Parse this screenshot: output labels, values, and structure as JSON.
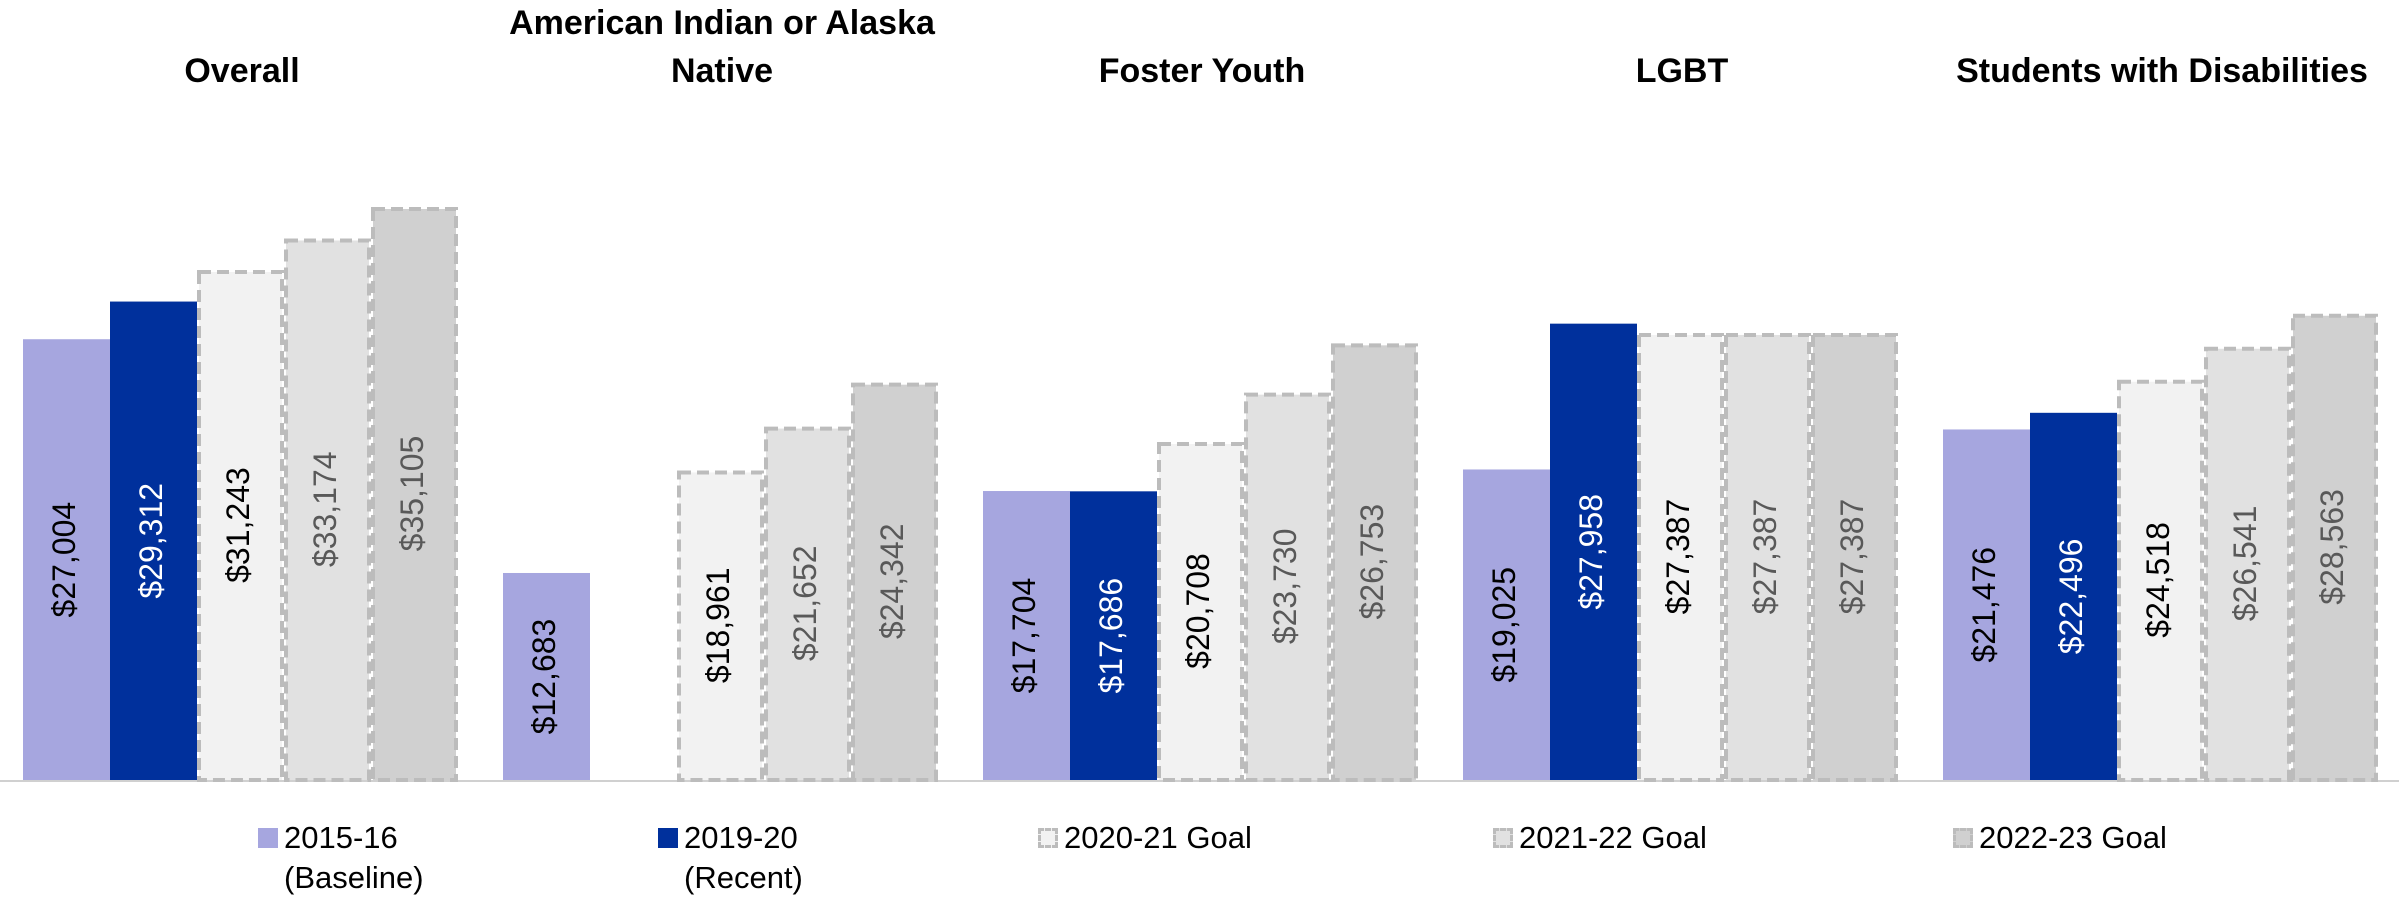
{
  "chart_data": {
    "type": "bar",
    "categories": [
      "Overall",
      "American Indian or Alaska Native",
      "Foster Youth",
      "LGBT",
      "Students with Disabilities"
    ],
    "series": [
      {
        "name": "2015-16 (Baseline)",
        "color": "#a6a6df",
        "label_color": "#000000",
        "values": [
          27004,
          12683,
          17704,
          19025,
          21476
        ],
        "value_labels": [
          "$27,004",
          "$12,683",
          "$17,704",
          "$19,025",
          "$21,476"
        ]
      },
      {
        "name": "2019-20 (Recent)",
        "color": "#00309c",
        "label_color": "#ffffff",
        "values": [
          29312,
          null,
          17686,
          27958,
          22496
        ],
        "value_labels": [
          "$29,312",
          null,
          "$17,686",
          "$27,958",
          "$22,496"
        ]
      },
      {
        "name": "2020-21 Goal",
        "color": "#f2f2f2",
        "stroke": "#bcbcbc",
        "dashed": true,
        "label_color": "#000000",
        "values": [
          31243,
          18961,
          20708,
          27387,
          24518
        ],
        "value_labels": [
          "$31,243",
          "$18,961",
          "$20,708",
          "$27,387",
          "$24,518"
        ]
      },
      {
        "name": "2021-22 Goal",
        "color": "#e1e1e1",
        "stroke": "#bcbcbc",
        "dashed": true,
        "label_color": "#595959",
        "values": [
          33174,
          21652,
          23730,
          27387,
          26541
        ],
        "value_labels": [
          "$33,174",
          "$21,652",
          "$23,730",
          "$27,387",
          "$26,541"
        ]
      },
      {
        "name": "2022-23 Goal",
        "color": "#d0d0d0",
        "stroke": "#bcbcbc",
        "dashed": true,
        "label_color": "#595959",
        "values": [
          35105,
          24342,
          26753,
          27387,
          28563
        ],
        "value_labels": [
          "$35,105",
          "$24,342",
          "$26,753",
          "$27,387",
          "$28,563"
        ]
      }
    ]
  }
}
